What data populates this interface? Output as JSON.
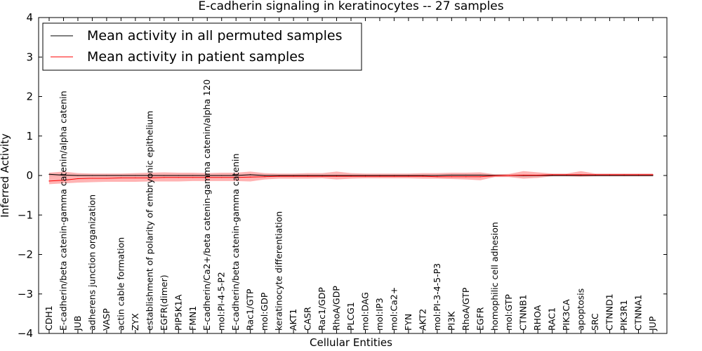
{
  "chart_data": {
    "type": "line",
    "title": "E-cadherin signaling in keratinocytes -- 27 samples",
    "xlabel": "Cellular Entities",
    "ylabel": "Inferred Activity",
    "ylim": [
      -4,
      4
    ],
    "yticks": [
      "−4",
      "−3",
      "−2",
      "−1",
      "0",
      "1",
      "2",
      "3",
      "4"
    ],
    "ytick_values": [
      -4,
      -3,
      -2,
      -1,
      0,
      1,
      2,
      3,
      4
    ],
    "legend_position": "top-left",
    "categories": [
      "CDH1",
      "E-cadherin/beta catenin-gamma catenin/alpha catenin",
      "JUB",
      "adherens junction organization",
      "VASP",
      "actin cable formation",
      "ZYX",
      "establishment of polarity of embryonic epithelium",
      "EGFR(dimer)",
      "PIP5K1A",
      "FMN1",
      "E-cadherin/Ca2+/beta catenin-gamma catenin/alpha 120",
      "mol:PI-4-5-P2",
      "E-cadherin/beta catenin-gamma catenin",
      "Rac1/GTP",
      "mol:GDP",
      "keratinocyte differentiation",
      "AKT1",
      "CASR",
      "Rac1/GDP",
      "RhoA/GDP",
      "PLCG1",
      "mol:DAG",
      "mol:IP3",
      "mol:Ca2+",
      "FYN",
      "AKT2",
      "mol:PI-3-4-5-P3",
      "PI3K",
      "RhoA/GTP",
      "EGFR",
      "homophilic cell adhesion",
      "mol:GTP",
      "CTNNB1",
      "RHOA",
      "RAC1",
      "PIK3CA",
      "apoptosis",
      "SRC",
      "CTNND1",
      "PIK3R1",
      "CTNNA1",
      "JUP"
    ],
    "series": [
      {
        "name": "Mean activity in all permuted samples",
        "color": "#000000",
        "band_color": "#bbbbbb",
        "values": [
          0.03,
          0.01,
          0.0,
          0.0,
          0.0,
          0.0,
          0.0,
          0.0,
          0.0,
          0.0,
          0.0,
          0.0,
          0.0,
          0.0,
          0.02,
          0.0,
          0.0,
          0.0,
          0.0,
          0.0,
          0.0,
          0.0,
          0.0,
          0.0,
          0.0,
          0.0,
          0.0,
          0.0,
          0.01,
          0.01,
          0.01,
          0.0,
          0.0,
          0.0,
          0.0,
          0.0,
          0.0,
          0.0,
          0.0,
          0.0,
          0.0,
          0.0,
          0.0
        ],
        "lower": [
          -0.02,
          -0.02,
          -0.02,
          -0.02,
          -0.02,
          -0.02,
          -0.02,
          -0.02,
          -0.02,
          -0.02,
          -0.02,
          -0.02,
          -0.02,
          -0.02,
          -0.02,
          -0.02,
          -0.02,
          -0.02,
          -0.02,
          -0.02,
          -0.02,
          -0.02,
          -0.02,
          -0.02,
          -0.02,
          -0.02,
          -0.02,
          -0.02,
          -0.02,
          -0.02,
          -0.02,
          -0.03,
          -0.03,
          -0.03,
          -0.02,
          -0.02,
          -0.02,
          -0.02,
          -0.02,
          -0.02,
          -0.02,
          -0.02,
          -0.02
        ],
        "upper": [
          0.05,
          0.03,
          0.02,
          0.02,
          0.02,
          0.02,
          0.02,
          0.02,
          0.02,
          0.02,
          0.02,
          0.02,
          0.02,
          0.02,
          0.04,
          0.02,
          0.02,
          0.02,
          0.02,
          0.02,
          0.02,
          0.02,
          0.02,
          0.02,
          0.02,
          0.02,
          0.02,
          0.02,
          0.03,
          0.03,
          0.03,
          0.03,
          0.03,
          0.03,
          0.02,
          0.02,
          0.02,
          0.02,
          0.02,
          0.02,
          0.02,
          0.02,
          0.02
        ]
      },
      {
        "name": "Mean activity in patient samples",
        "color": "#ff0000",
        "band_color": "#ff8080",
        "values": [
          -0.14,
          -0.12,
          -0.08,
          -0.07,
          -0.07,
          -0.06,
          -0.06,
          -0.06,
          -0.05,
          -0.05,
          -0.05,
          -0.05,
          -0.05,
          -0.05,
          -0.04,
          -0.03,
          -0.02,
          -0.02,
          -0.02,
          -0.02,
          -0.02,
          -0.02,
          -0.02,
          -0.02,
          -0.02,
          -0.02,
          -0.02,
          -0.03,
          -0.03,
          -0.03,
          -0.03,
          -0.01,
          0.0,
          0.01,
          0.01,
          0.02,
          0.02,
          0.02,
          0.02,
          0.02,
          0.02,
          0.02,
          0.02
        ],
        "lower": [
          -0.22,
          -0.2,
          -0.18,
          -0.17,
          -0.16,
          -0.16,
          -0.16,
          -0.15,
          -0.15,
          -0.15,
          -0.14,
          -0.14,
          -0.14,
          -0.14,
          -0.15,
          -0.1,
          -0.08,
          -0.08,
          -0.08,
          -0.07,
          -0.1,
          -0.08,
          -0.07,
          -0.07,
          -0.07,
          -0.07,
          -0.08,
          -0.08,
          -0.09,
          -0.1,
          -0.12,
          -0.04,
          -0.04,
          -0.08,
          -0.06,
          -0.02,
          -0.02,
          -0.03,
          -0.02,
          -0.02,
          -0.02,
          -0.02,
          -0.02
        ],
        "upper": [
          0.07,
          0.1,
          0.06,
          0.05,
          0.05,
          0.05,
          0.06,
          0.07,
          0.08,
          0.07,
          0.07,
          0.06,
          0.07,
          0.07,
          0.1,
          0.06,
          0.05,
          0.05,
          0.06,
          0.06,
          0.1,
          0.06,
          0.05,
          0.05,
          0.05,
          0.05,
          0.06,
          0.06,
          0.07,
          0.07,
          0.08,
          0.03,
          0.04,
          0.11,
          0.08,
          0.05,
          0.05,
          0.11,
          0.05,
          0.05,
          0.05,
          0.05,
          0.05
        ]
      }
    ]
  }
}
